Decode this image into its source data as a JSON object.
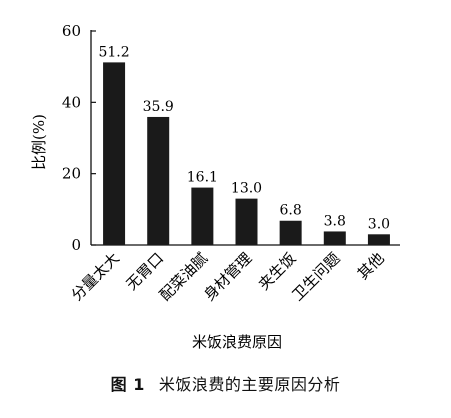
{
  "caption": {
    "figure_number": "图 1",
    "title": "米饭浪费的主要原因分析"
  },
  "chart_data": {
    "type": "bar",
    "categories": [
      "分量太大",
      "无胃口",
      "配菜油腻",
      "身材管理",
      "夹生饭",
      "卫生问题",
      "其他"
    ],
    "values": [
      51.2,
      35.9,
      16.1,
      13.0,
      6.8,
      3.8,
      3.0
    ],
    "value_labels": [
      "51.2",
      "35.9",
      "16.1",
      "13.0",
      "6.8",
      "3.8",
      "3.0"
    ],
    "xlabel": "米饭浪费原因",
    "ylabel": "比例(%)",
    "ylim": [
      0,
      60
    ],
    "yticks": [
      "0",
      "20",
      "40",
      "60"
    ],
    "grid": false,
    "bar_color": "#1a1a1a"
  }
}
